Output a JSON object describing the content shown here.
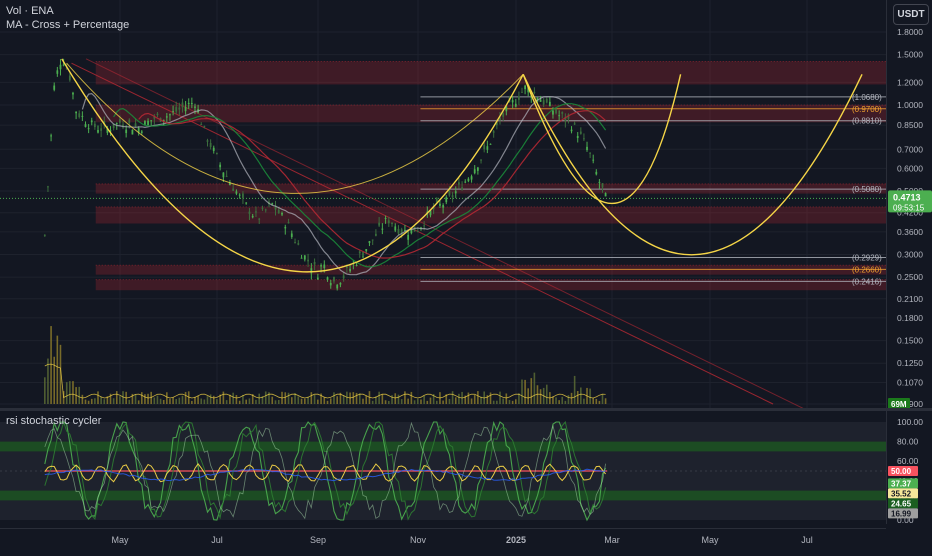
{
  "header": {
    "symbol_line": "Vol · ENA",
    "indicator_line": "MA - Cross + Percentage",
    "currency_button": "USDT"
  },
  "oscillator": {
    "title": "rsi stochastic cycler",
    "axis_ticks": [
      "100.00",
      "80.00",
      "60.00",
      "40.00",
      "20.00",
      "0.00"
    ],
    "badges": [
      {
        "label": "50.00",
        "value": 50.0,
        "color": "#f7525f"
      },
      {
        "label": "37.37",
        "value": 37.37,
        "color": "#4caf50"
      },
      {
        "label": "35.52",
        "value": 35.52,
        "color": "#f5e79a"
      },
      {
        "label": "24.65",
        "value": 24.65,
        "color": "#1b5e20"
      },
      {
        "label": "16.99",
        "value": 16.99,
        "color": "#9e9e9e"
      }
    ]
  },
  "price_axis": {
    "ticks": [
      "1.8000",
      "1.5000",
      "1.2000",
      "1.0000",
      "0.8500",
      "0.7000",
      "0.6000",
      "0.5000",
      "0.4200",
      "0.3600",
      "0.3000",
      "0.2500",
      "0.2100",
      "0.1800",
      "0.1500",
      "0.1250",
      "0.1070",
      "0.0900"
    ],
    "current_price": "0.4713",
    "countdown": "09:53:15",
    "volume_badge": "69M"
  },
  "colors": {
    "up": "#4caf50",
    "cup_arc": "#f5d547",
    "zone": "#b22833",
    "trendline": "#b22833",
    "fib_line": "#b2b5be",
    "fib_orange": "#f0a030"
  },
  "chart_data": {
    "type": "candlestick",
    "pair": "ENA / USDT",
    "scale": "log",
    "ylim": [
      0.09,
      1.8
    ],
    "x_ticks": [
      "May",
      "Jul",
      "Sep",
      "Nov",
      "2025",
      "Mar",
      "May",
      "Jul"
    ],
    "fib_levels": [
      {
        "label": "(1.0680)",
        "value": 1.068
      },
      {
        "label": "(0.9700)",
        "value": 0.97
      },
      {
        "label": "(0.8810)",
        "value": 0.881
      },
      {
        "label": "(0.5080)",
        "value": 0.508
      },
      {
        "label": "(0.2929)",
        "value": 0.2929
      },
      {
        "label": "(0.2660)",
        "value": 0.266
      },
      {
        "label": "(0.2416)",
        "value": 0.2416
      }
    ],
    "resistance_zones": [
      {
        "from": 1.18,
        "to": 1.42
      },
      {
        "from": 0.87,
        "to": 1.0
      },
      {
        "from": 0.49,
        "to": 0.53
      },
      {
        "from": 0.385,
        "to": 0.44
      },
      {
        "from": 0.255,
        "to": 0.275
      },
      {
        "from": 0.225,
        "to": 0.245
      }
    ],
    "series": [
      {
        "name": "ENA",
        "candles": [
          {
            "x": "May",
            "close": 0.88
          },
          {
            "x": "Jun",
            "close": 0.82
          },
          {
            "x": "Jul",
            "close": 0.6
          },
          {
            "x": "Aug",
            "close": 0.3
          },
          {
            "x": "Sep",
            "close": 0.25
          },
          {
            "x": "Oct",
            "close": 0.37
          },
          {
            "x": "Nov",
            "close": 0.53
          },
          {
            "x": "Dec",
            "close": 1.05
          },
          {
            "x": "2025",
            "close": 0.88
          },
          {
            "x": "Feb",
            "close": 0.4713
          }
        ]
      }
    ]
  }
}
